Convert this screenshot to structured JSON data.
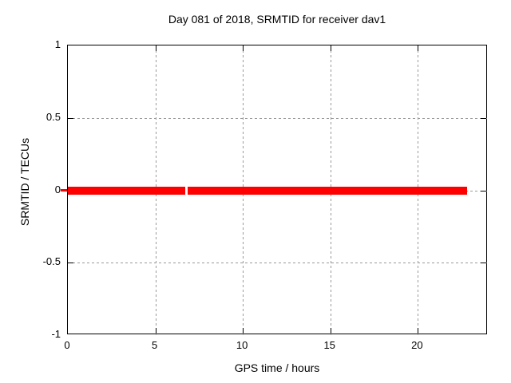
{
  "chart_data": {
    "type": "line",
    "title": "Day 081 of 2018, SRMTID for receiver dav1",
    "xlabel": "GPS time / hours",
    "ylabel": "SRMTID / TECUs",
    "xlim": [
      0,
      24
    ],
    "ylim": [
      -1,
      1
    ],
    "xticks": [
      0,
      5,
      10,
      15,
      20
    ],
    "yticks": [
      1,
      0.5,
      0,
      -0.5,
      -1
    ],
    "grid": true,
    "legend_position": "none",
    "series": [
      {
        "name": "SRMTID",
        "color": "#ff0000",
        "style": "thick flat line at zero with small data gap",
        "y_value": 0,
        "segments": [
          {
            "x_start": 0.0,
            "x_end": 6.72,
            "y": 0
          },
          {
            "x_start": 6.85,
            "x_end": 22.82,
            "y": 0
          }
        ]
      }
    ]
  },
  "colors": {
    "background": "#ffffff",
    "axis": "#000000",
    "grid": "#9a9a9a",
    "series": "#ff0000"
  }
}
